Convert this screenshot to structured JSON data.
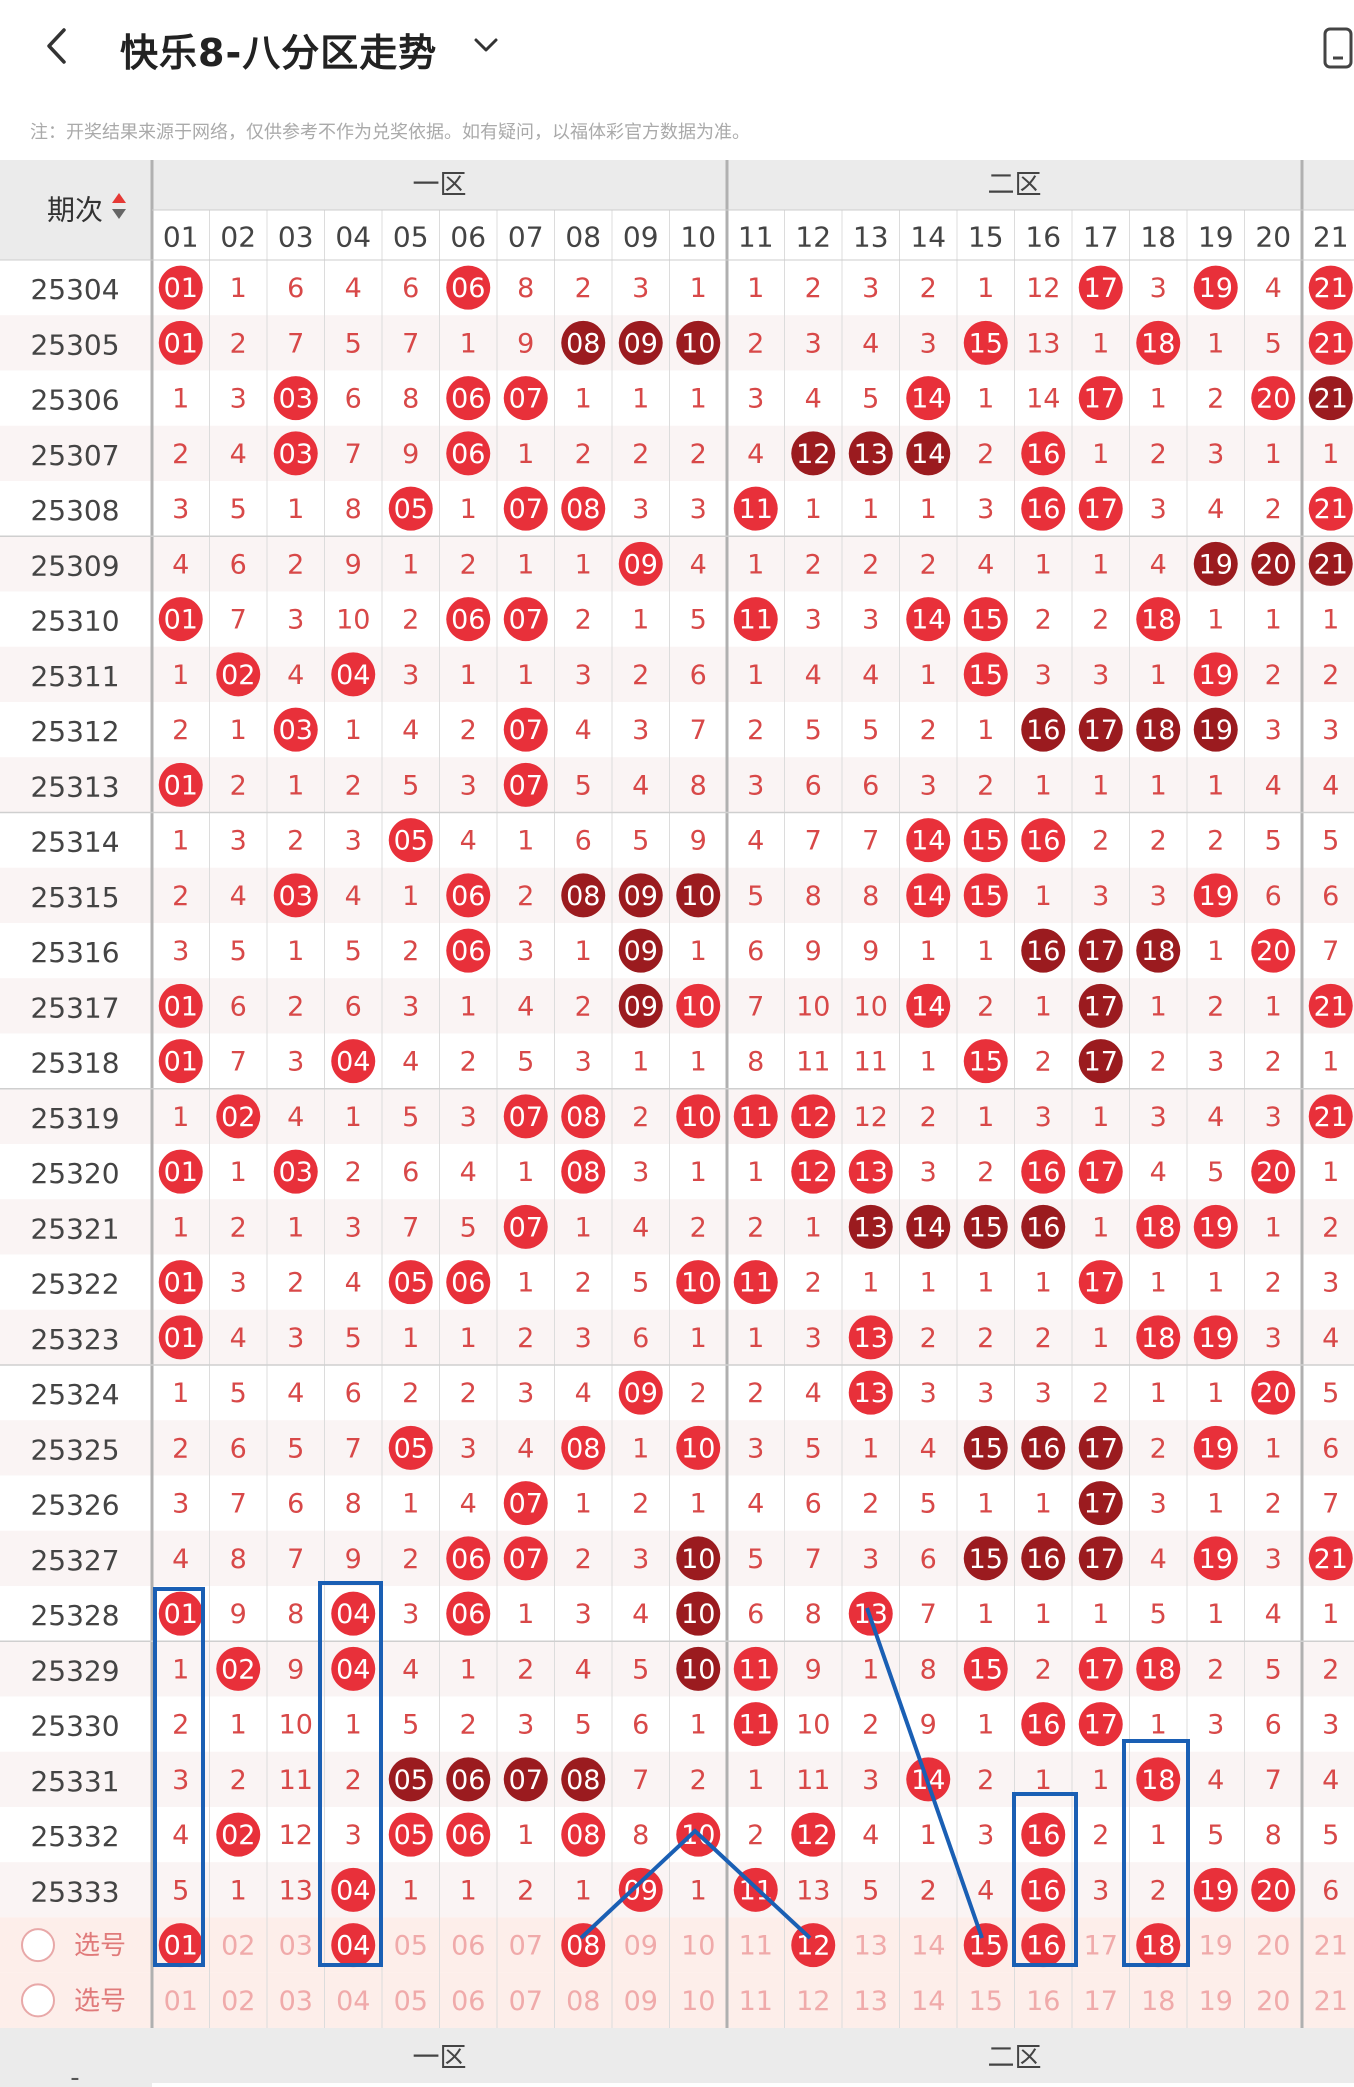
{
  "header": {
    "title": "快乐8-八分区走势",
    "back_icon": "chevron-left-icon",
    "dropdown_icon": "chevron-down-icon",
    "right_icon": "phone-rotate-icon"
  },
  "notice": "注：开奖结果来源于网络，仅供参考不作为兑奖依据。如有疑问，以福体彩官方数据为准。",
  "table": {
    "period_header": "期次",
    "sort_icon": "sort-updown-icon",
    "zones": [
      "一区",
      "二区"
    ],
    "column_numbers": [
      "01",
      "02",
      "03",
      "04",
      "05",
      "06",
      "07",
      "08",
      "09",
      "10",
      "11",
      "12",
      "13",
      "14",
      "15",
      "16",
      "17",
      "18",
      "19",
      "20",
      "21"
    ],
    "select_label": "选号",
    "footer_dash": "-",
    "rows": [
      {
        "period": "25304",
        "cells": [
          "01",
          "1",
          "6",
          "4",
          "6",
          "06",
          "8",
          "2",
          "3",
          "1",
          "1",
          "2",
          "3",
          "2",
          "1",
          "12",
          "17",
          "3",
          "19",
          "4",
          "21"
        ]
      },
      {
        "period": "25305",
        "cells": [
          "01",
          "2",
          "7",
          "5",
          "7",
          "1",
          "9",
          "08",
          "09",
          "10",
          "2",
          "3",
          "4",
          "3",
          "15",
          "13",
          "1",
          "18",
          "1",
          "5",
          "21"
        ]
      },
      {
        "period": "25306",
        "cells": [
          "1",
          "3",
          "03",
          "6",
          "8",
          "06",
          "07",
          "1",
          "1",
          "1",
          "3",
          "4",
          "5",
          "14",
          "1",
          "14",
          "17",
          "1",
          "2",
          "20",
          "21"
        ]
      },
      {
        "period": "25307",
        "cells": [
          "2",
          "4",
          "03",
          "7",
          "9",
          "06",
          "1",
          "2",
          "2",
          "2",
          "4",
          "12",
          "13",
          "14",
          "2",
          "16",
          "1",
          "2",
          "3",
          "1",
          "1"
        ]
      },
      {
        "period": "25308",
        "cells": [
          "3",
          "5",
          "1",
          "8",
          "05",
          "1",
          "07",
          "08",
          "3",
          "3",
          "11",
          "1",
          "1",
          "1",
          "3",
          "16",
          "17",
          "3",
          "4",
          "2",
          "21"
        ]
      },
      {
        "period": "25309",
        "cells": [
          "4",
          "6",
          "2",
          "9",
          "1",
          "2",
          "1",
          "1",
          "09",
          "4",
          "1",
          "2",
          "2",
          "2",
          "4",
          "1",
          "1",
          "4",
          "19",
          "20",
          "21"
        ]
      },
      {
        "period": "25310",
        "cells": [
          "01",
          "7",
          "3",
          "10",
          "2",
          "06",
          "07",
          "2",
          "1",
          "5",
          "11",
          "3",
          "3",
          "14",
          "15",
          "2",
          "2",
          "18",
          "1",
          "1",
          "1"
        ]
      },
      {
        "period": "25311",
        "cells": [
          "1",
          "02",
          "4",
          "04",
          "3",
          "1",
          "1",
          "3",
          "2",
          "6",
          "1",
          "4",
          "4",
          "1",
          "15",
          "3",
          "3",
          "1",
          "19",
          "2",
          "2"
        ]
      },
      {
        "period": "25312",
        "cells": [
          "2",
          "1",
          "03",
          "1",
          "4",
          "2",
          "07",
          "4",
          "3",
          "7",
          "2",
          "5",
          "5",
          "2",
          "1",
          "16",
          "17",
          "18",
          "19",
          "3",
          "3"
        ]
      },
      {
        "period": "25313",
        "cells": [
          "01",
          "2",
          "1",
          "2",
          "5",
          "3",
          "07",
          "5",
          "4",
          "8",
          "3",
          "6",
          "6",
          "3",
          "2",
          "1",
          "1",
          "1",
          "1",
          "4",
          "4"
        ]
      },
      {
        "period": "25314",
        "cells": [
          "1",
          "3",
          "2",
          "3",
          "05",
          "4",
          "1",
          "6",
          "5",
          "9",
          "4",
          "7",
          "7",
          "14",
          "15",
          "16",
          "2",
          "2",
          "2",
          "5",
          "5"
        ]
      },
      {
        "period": "25315",
        "cells": [
          "2",
          "4",
          "03",
          "4",
          "1",
          "06",
          "2",
          "08",
          "09",
          "10",
          "5",
          "8",
          "8",
          "14",
          "15",
          "1",
          "3",
          "3",
          "19",
          "6",
          "6"
        ]
      },
      {
        "period": "25316",
        "cells": [
          "3",
          "5",
          "1",
          "5",
          "2",
          "06",
          "3",
          "1",
          "09",
          "1",
          "6",
          "9",
          "9",
          "1",
          "1",
          "16",
          "17",
          "18",
          "1",
          "20",
          "7"
        ]
      },
      {
        "period": "25317",
        "cells": [
          "01",
          "6",
          "2",
          "6",
          "3",
          "1",
          "4",
          "2",
          "09",
          "10",
          "7",
          "10",
          "10",
          "14",
          "2",
          "1",
          "17",
          "1",
          "2",
          "1",
          "21"
        ]
      },
      {
        "period": "25318",
        "cells": [
          "01",
          "7",
          "3",
          "04",
          "4",
          "2",
          "5",
          "3",
          "1",
          "1",
          "8",
          "11",
          "11",
          "1",
          "15",
          "2",
          "17",
          "2",
          "3",
          "2",
          "1"
        ]
      },
      {
        "period": "25319",
        "cells": [
          "1",
          "02",
          "4",
          "1",
          "5",
          "3",
          "07",
          "08",
          "2",
          "10",
          "11",
          "12",
          "12",
          "2",
          "1",
          "3",
          "1",
          "3",
          "4",
          "3",
          "21"
        ]
      },
      {
        "period": "25320",
        "cells": [
          "01",
          "1",
          "03",
          "2",
          "6",
          "4",
          "1",
          "08",
          "3",
          "1",
          "1",
          "12",
          "13",
          "3",
          "2",
          "16",
          "17",
          "4",
          "5",
          "20",
          "1"
        ]
      },
      {
        "period": "25321",
        "cells": [
          "1",
          "2",
          "1",
          "3",
          "7",
          "5",
          "07",
          "1",
          "4",
          "2",
          "2",
          "1",
          "13",
          "14",
          "15",
          "16",
          "1",
          "18",
          "19",
          "1",
          "2"
        ]
      },
      {
        "period": "25322",
        "cells": [
          "01",
          "3",
          "2",
          "4",
          "05",
          "06",
          "1",
          "2",
          "5",
          "10",
          "11",
          "2",
          "1",
          "1",
          "1",
          "1",
          "17",
          "1",
          "1",
          "2",
          "3"
        ]
      },
      {
        "period": "25323",
        "cells": [
          "01",
          "4",
          "3",
          "5",
          "1",
          "1",
          "2",
          "3",
          "6",
          "1",
          "1",
          "3",
          "13",
          "2",
          "2",
          "2",
          "1",
          "18",
          "19",
          "3",
          "4"
        ]
      },
      {
        "period": "25324",
        "cells": [
          "1",
          "5",
          "4",
          "6",
          "2",
          "2",
          "3",
          "4",
          "09",
          "2",
          "2",
          "4",
          "13",
          "3",
          "3",
          "3",
          "2",
          "1",
          "1",
          "20",
          "5"
        ]
      },
      {
        "period": "25325",
        "cells": [
          "2",
          "6",
          "5",
          "7",
          "05",
          "3",
          "4",
          "08",
          "1",
          "10",
          "3",
          "5",
          "1",
          "4",
          "15",
          "16",
          "17",
          "2",
          "19",
          "1",
          "6"
        ]
      },
      {
        "period": "25326",
        "cells": [
          "3",
          "7",
          "6",
          "8",
          "1",
          "4",
          "07",
          "1",
          "2",
          "1",
          "4",
          "6",
          "2",
          "5",
          "1",
          "1",
          "17",
          "3",
          "1",
          "2",
          "7"
        ]
      },
      {
        "period": "25327",
        "cells": [
          "4",
          "8",
          "7",
          "9",
          "2",
          "06",
          "07",
          "2",
          "3",
          "10",
          "5",
          "7",
          "3",
          "6",
          "15",
          "16",
          "17",
          "4",
          "19",
          "3",
          "21"
        ]
      },
      {
        "period": "25328",
        "cells": [
          "01",
          "9",
          "8",
          "04",
          "3",
          "06",
          "1",
          "3",
          "4",
          "10",
          "6",
          "8",
          "13",
          "7",
          "1",
          "1",
          "1",
          "5",
          "1",
          "4",
          "1"
        ]
      },
      {
        "period": "25329",
        "cells": [
          "1",
          "02",
          "9",
          "04",
          "4",
          "1",
          "2",
          "4",
          "5",
          "10",
          "11",
          "9",
          "1",
          "8",
          "15",
          "2",
          "17",
          "18",
          "2",
          "5",
          "2"
        ]
      },
      {
        "period": "25330",
        "cells": [
          "2",
          "1",
          "10",
          "1",
          "5",
          "2",
          "3",
          "5",
          "6",
          "1",
          "11",
          "10",
          "2",
          "9",
          "1",
          "16",
          "17",
          "1",
          "3",
          "6",
          "3"
        ]
      },
      {
        "period": "25331",
        "cells": [
          "3",
          "2",
          "11",
          "2",
          "05",
          "06",
          "07",
          "08",
          "7",
          "2",
          "1",
          "11",
          "3",
          "14",
          "2",
          "1",
          "1",
          "18",
          "4",
          "7",
          "4"
        ]
      },
      {
        "period": "25332",
        "cells": [
          "4",
          "02",
          "12",
          "3",
          "05",
          "06",
          "1",
          "08",
          "8",
          "10",
          "2",
          "12",
          "4",
          "1",
          "3",
          "16",
          "2",
          "1",
          "5",
          "8",
          "5"
        ]
      },
      {
        "period": "25333",
        "cells": [
          "5",
          "1",
          "13",
          "04",
          "1",
          "1",
          "2",
          "1",
          "09",
          "1",
          "11",
          "13",
          "5",
          "2",
          "4",
          "16",
          "3",
          "2",
          "19",
          "20",
          "6"
        ]
      }
    ],
    "select_row_1": [
      "01",
      "02",
      "03",
      "04",
      "05",
      "06",
      "07",
      "08",
      "09",
      "10",
      "11",
      "12",
      "13",
      "14",
      "15",
      "16",
      "17",
      "18",
      "19",
      "20",
      "21"
    ],
    "select_row_1_picked": [
      1,
      4,
      8,
      12,
      15,
      16,
      18
    ],
    "select_row_2": [
      "01",
      "02",
      "03",
      "04",
      "05",
      "06",
      "07",
      "08",
      "09",
      "10",
      "11",
      "12",
      "13",
      "14",
      "15",
      "16",
      "17",
      "18",
      "19",
      "20",
      "21"
    ]
  },
  "colors": {
    "ball_red": "#e8303a",
    "ball_dark_red": "#9b1b1f",
    "miss_text": "#d84848",
    "header_bg": "#ebebeb",
    "alt_row_bg": "#faf4f4",
    "select_row_bg": "#fdeeea",
    "annotation_blue": "#1a5fb4"
  }
}
